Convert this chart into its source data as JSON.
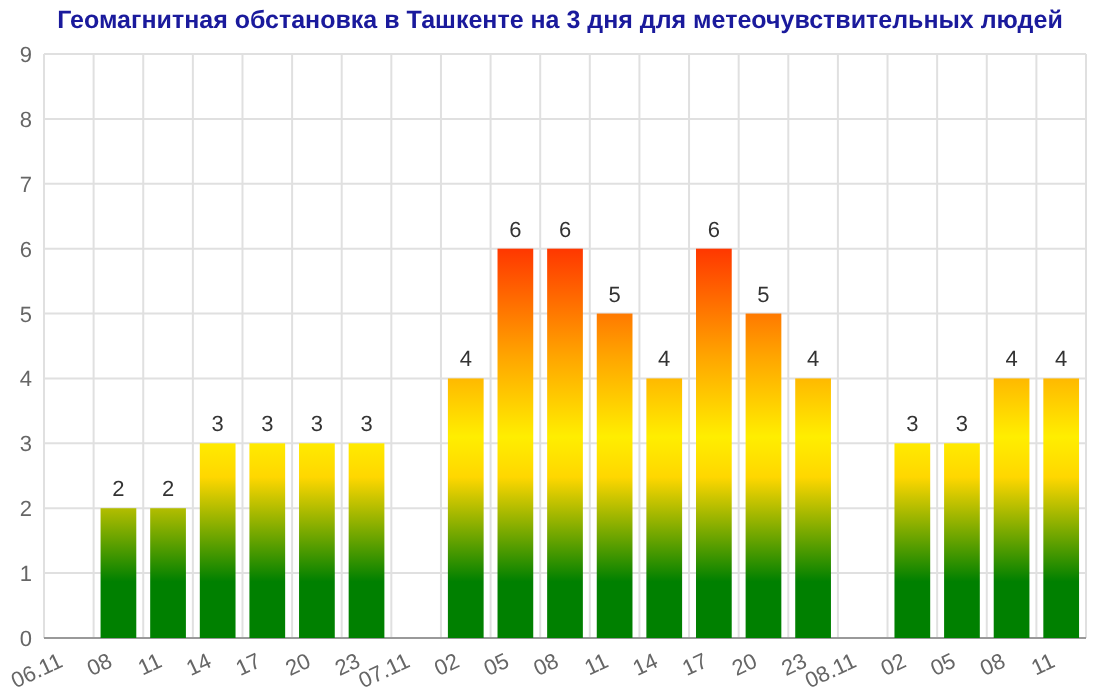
{
  "chart_data": {
    "type": "bar",
    "title": "Геомагнитная обстановка в Ташкенте на 3 дня для метеочувствительных людей",
    "categories": [
      "06.11",
      "08",
      "11",
      "14",
      "17",
      "20",
      "23",
      "07.11",
      "02",
      "05",
      "08",
      "11",
      "14",
      "17",
      "20",
      "23",
      "08.11",
      "02",
      "05",
      "08",
      "11"
    ],
    "values": [
      null,
      2,
      2,
      3,
      3,
      3,
      3,
      null,
      4,
      6,
      6,
      5,
      4,
      6,
      5,
      4,
      null,
      3,
      3,
      4,
      4
    ],
    "ylim": [
      0,
      9
    ],
    "yticks": [
      0,
      1,
      2,
      3,
      4,
      5,
      6,
      7,
      8,
      9
    ],
    "grid": true,
    "data_labels": true
  }
}
